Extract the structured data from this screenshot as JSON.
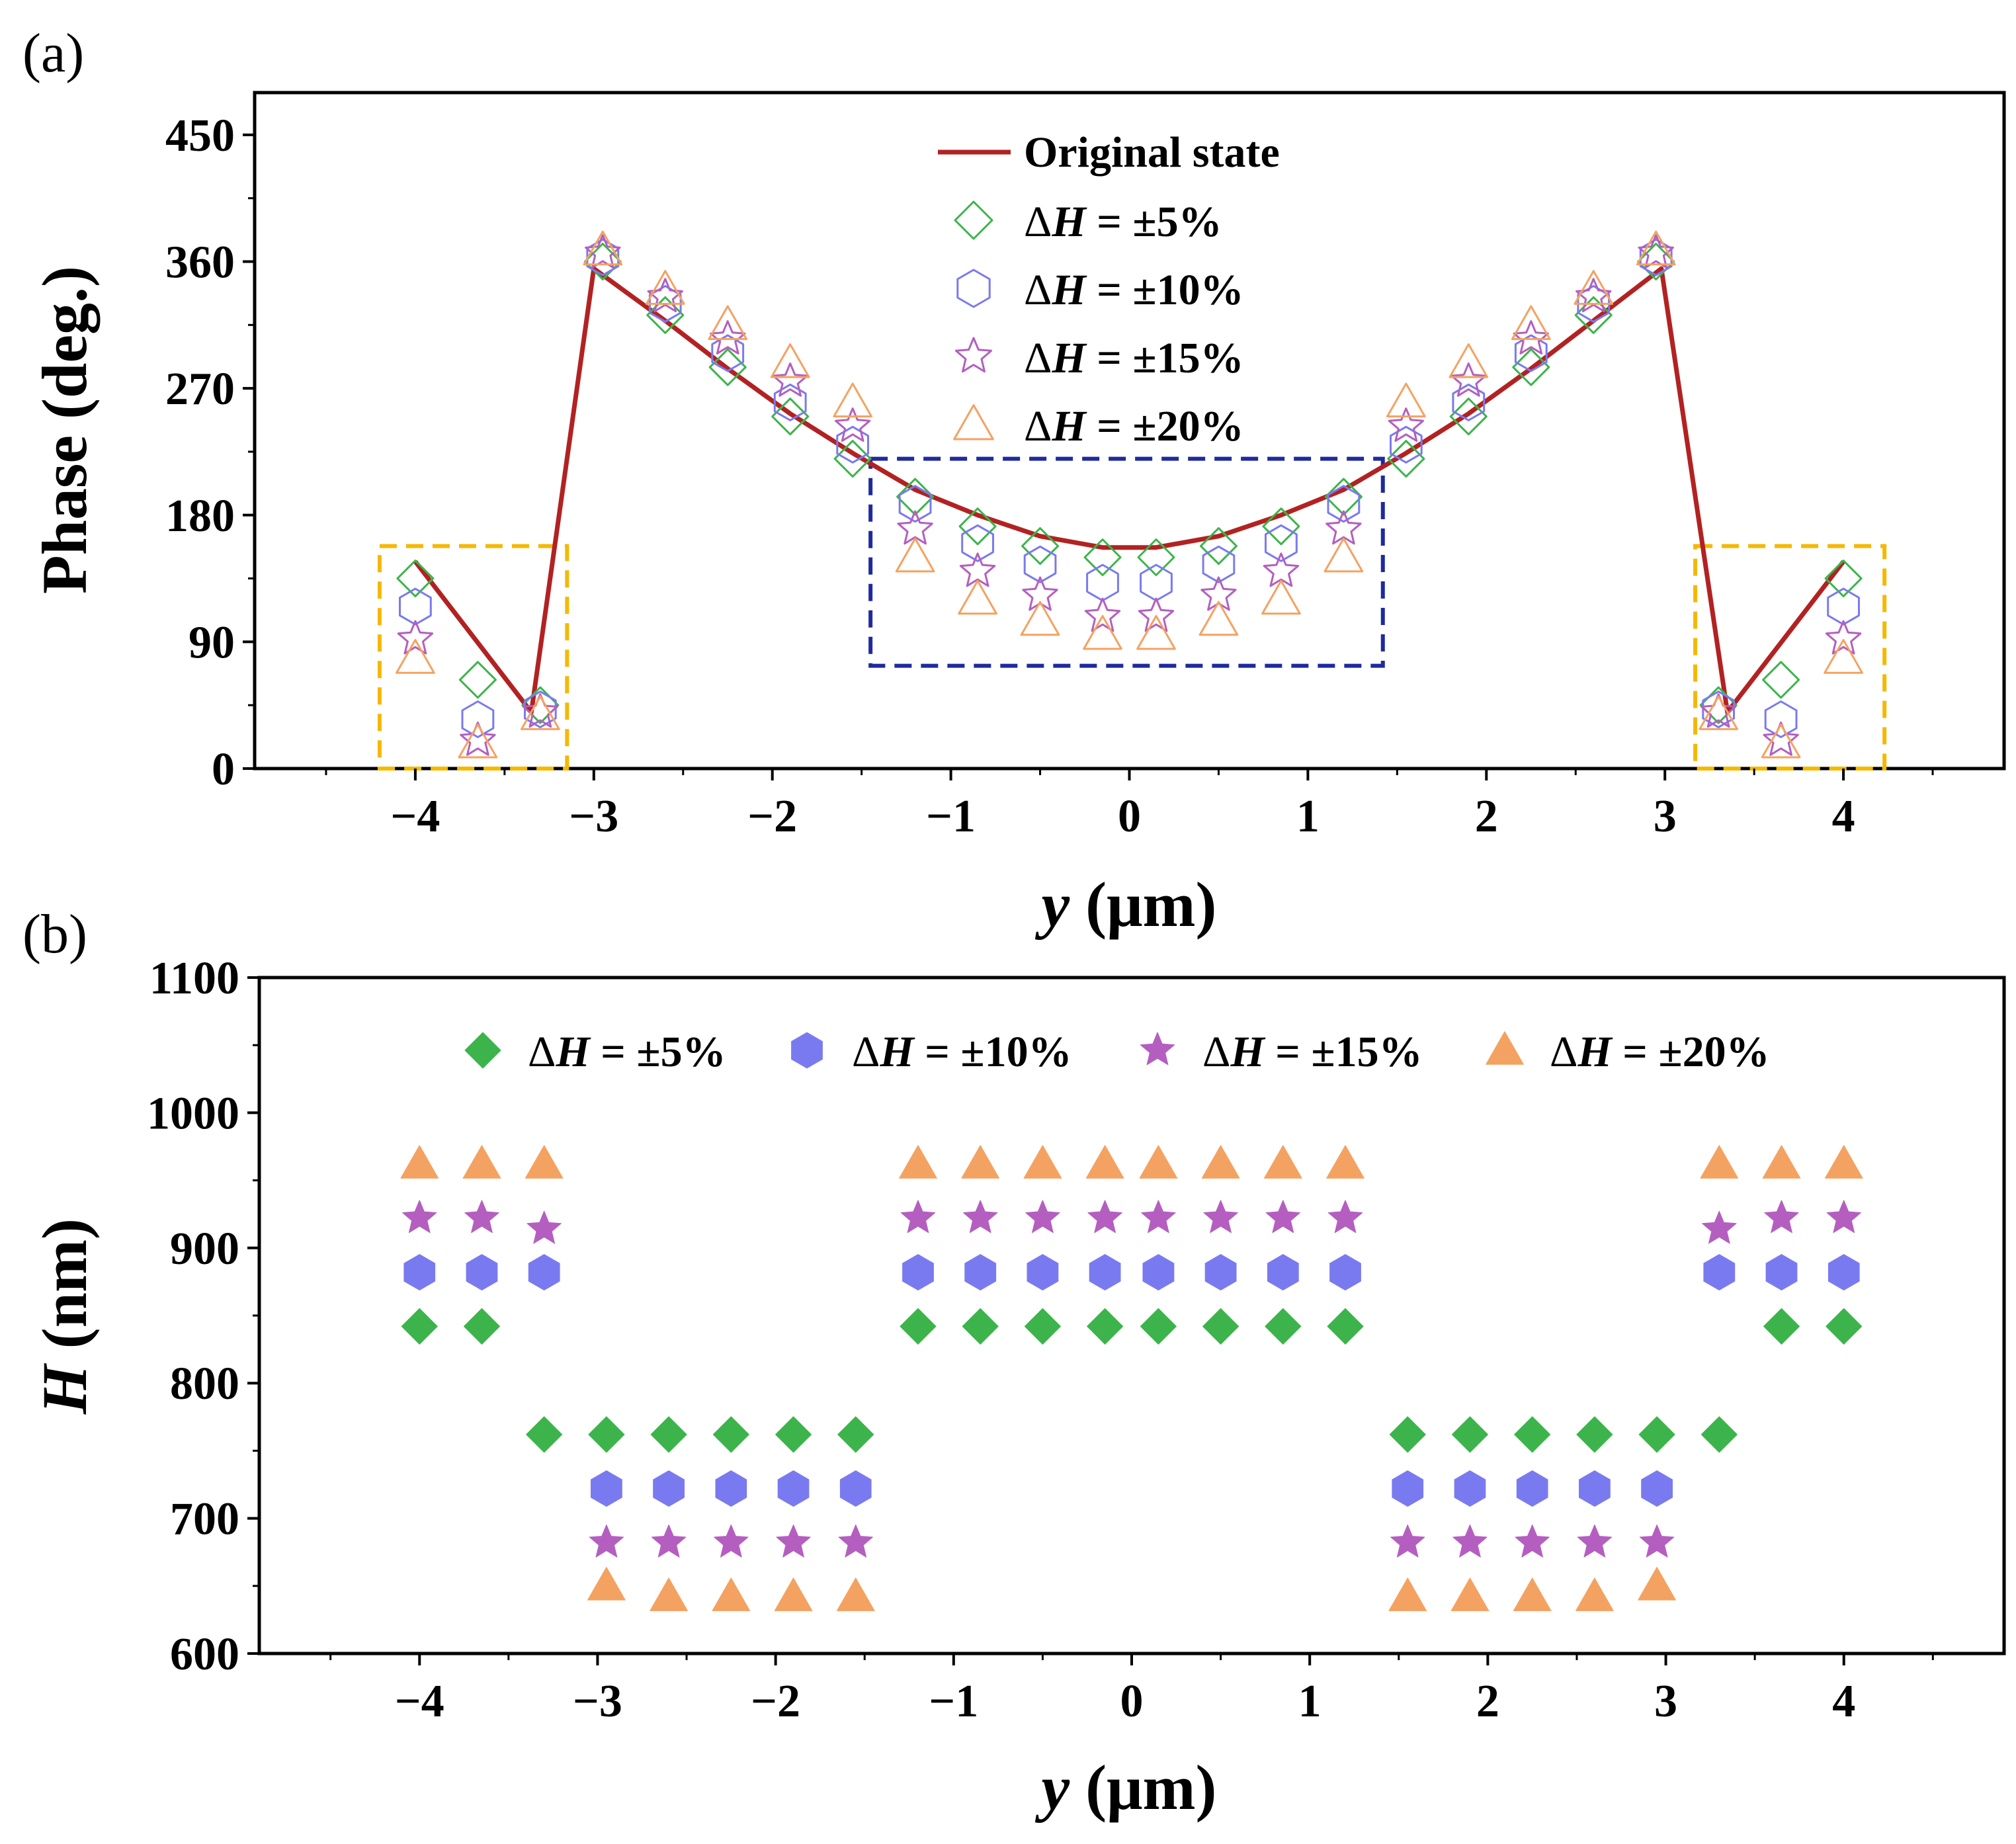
{
  "colors": {
    "line": "#b22222",
    "s5": "#3cb44b",
    "s10": "#7a7af0",
    "s15": "#b45fc0",
    "s20": "#f4a261",
    "box_center": "#1f2a9e",
    "box_side": "#f5b800"
  },
  "chart_data": [
    {
      "type": "scatter",
      "panel_label": "(a)",
      "xlabel_italic": "y",
      "xlabel_rest": " (μm)",
      "ylabel": "Phase (deg.)",
      "xlim": [
        -4.9,
        4.9
      ],
      "ylim": [
        0,
        480
      ],
      "xticks": [
        -4,
        -3,
        -2,
        -1,
        0,
        1,
        2,
        3,
        4
      ],
      "xtick_labels": [
        "−4",
        "−3",
        "−2",
        "−1",
        "0",
        "1",
        "2",
        "3",
        "4"
      ],
      "yticks": [
        0,
        90,
        180,
        270,
        360,
        450
      ],
      "ytick_labels": [
        "0",
        "90",
        "180",
        "270",
        "360",
        "450"
      ],
      "x": [
        -4.0,
        -3.65,
        -3.3,
        -2.95,
        -2.6,
        -2.25,
        -1.9,
        -1.55,
        -1.2,
        -0.85,
        -0.5,
        -0.15,
        0.15,
        0.5,
        0.85,
        1.2,
        1.55,
        1.9,
        2.25,
        2.6,
        2.95,
        3.3,
        3.65,
        4.0
      ],
      "line": {
        "name": "Original state",
        "x": [
          -4.0,
          -3.35,
          -3.0,
          -2.6,
          -2.25,
          -1.9,
          -1.55,
          -1.2,
          -0.85,
          -0.5,
          -0.15,
          0.15,
          0.5,
          0.85,
          1.2,
          1.55,
          1.9,
          2.25,
          2.6,
          2.98,
          3.35,
          4.0
        ],
        "y": [
          147,
          40,
          355,
          318,
          284,
          252,
          224,
          198,
          180,
          165,
          157,
          157,
          165,
          180,
          198,
          224,
          252,
          284,
          318,
          355,
          40,
          147
        ]
      },
      "series": [
        {
          "name_delta": "Δ",
          "name_var": "H",
          "name_rest": " = ±5%",
          "marker": "diamond",
          "filled": false,
          "color_key": "s5",
          "y": [
            135,
            63,
            45,
            360,
            322,
            285,
            250,
            220,
            193,
            172,
            158,
            150,
            150,
            158,
            172,
            193,
            220,
            250,
            285,
            322,
            360,
            45,
            63,
            135
          ]
        },
        {
          "name_delta": "Δ",
          "name_var": "H",
          "name_rest": " = ±10%",
          "marker": "hexagon",
          "filled": false,
          "color_key": "s10",
          "y": [
            115,
            35,
            42,
            363,
            330,
            295,
            260,
            230,
            188,
            160,
            145,
            132,
            132,
            145,
            160,
            188,
            230,
            260,
            295,
            330,
            363,
            42,
            35,
            115
          ]
        },
        {
          "name_delta": "Δ",
          "name_var": "H",
          "name_rest": " = ±15%",
          "marker": "star",
          "filled": false,
          "color_key": "s15",
          "y": [
            92,
            20,
            40,
            366,
            335,
            305,
            275,
            243,
            170,
            140,
            123,
            108,
            108,
            123,
            140,
            170,
            243,
            275,
            305,
            335,
            366,
            40,
            20,
            92
          ]
        },
        {
          "name_delta": "Δ",
          "name_var": "H",
          "name_rest": " = ±20%",
          "marker": "triangle",
          "filled": false,
          "color_key": "s20",
          "y": [
            78,
            18,
            38,
            368,
            340,
            315,
            288,
            260,
            150,
            120,
            105,
            95,
            95,
            105,
            120,
            150,
            260,
            288,
            315,
            340,
            368,
            38,
            18,
            78
          ]
        }
      ],
      "boxes": [
        {
          "x0": -4.2,
          "x1": -3.15,
          "y0": 0,
          "y1": 158,
          "color_key": "box_side"
        },
        {
          "x0": -1.45,
          "x1": 1.42,
          "y0": 73,
          "y1": 220,
          "color_key": "box_center"
        },
        {
          "x0": 3.17,
          "x1": 4.23,
          "y0": 0,
          "y1": 158,
          "color_key": "box_side"
        }
      ],
      "legend": "top-center"
    },
    {
      "type": "scatter",
      "panel_label": "(b)",
      "xlabel_italic": "y",
      "xlabel_rest": " (μm)",
      "ylabel_italic": "H",
      "ylabel_rest": " (nm)",
      "xlim": [
        -4.9,
        4.9
      ],
      "ylim": [
        600,
        1100
      ],
      "xticks": [
        -4,
        -3,
        -2,
        -1,
        0,
        1,
        2,
        3,
        4
      ],
      "xtick_labels": [
        "−4",
        "−3",
        "−2",
        "−1",
        "0",
        "1",
        "2",
        "3",
        "4"
      ],
      "yticks": [
        600,
        700,
        800,
        900,
        1000,
        1100
      ],
      "ytick_labels": [
        "600",
        "700",
        "800",
        "900",
        "1000",
        "1100"
      ],
      "x": [
        -4.0,
        -3.65,
        -3.3,
        -2.95,
        -2.6,
        -2.25,
        -1.9,
        -1.55,
        -1.2,
        -0.85,
        -0.5,
        -0.15,
        0.15,
        0.5,
        0.85,
        1.2,
        1.55,
        1.9,
        2.25,
        2.6,
        2.95,
        3.3,
        3.65,
        4.0
      ],
      "series": [
        {
          "name_delta": "Δ",
          "name_var": "H",
          "name_rest": " = ±5%",
          "marker": "diamond",
          "filled": true,
          "color_key": "s5",
          "y": [
            842,
            842,
            null,
            762,
            762,
            762,
            762,
            762,
            842,
            842,
            842,
            842,
            842,
            842,
            842,
            842,
            762,
            762,
            762,
            762,
            762,
            762,
            842,
            842
          ],
          "y_extra": [
            {
              "x": -3.3,
              "y": 762
            }
          ]
        },
        {
          "name_delta": "Δ",
          "name_var": "H",
          "name_rest": " = ±10%",
          "marker": "hexagon",
          "filled": true,
          "color_key": "s10",
          "y": [
            882,
            882,
            882,
            722,
            722,
            722,
            722,
            722,
            882,
            882,
            882,
            882,
            882,
            882,
            882,
            882,
            722,
            722,
            722,
            722,
            722,
            882,
            882,
            882
          ]
        },
        {
          "name_delta": "Δ",
          "name_var": "H",
          "name_rest": " = ±15%",
          "marker": "star",
          "filled": true,
          "color_key": "s15",
          "y": [
            922,
            922,
            914,
            682,
            682,
            682,
            682,
            682,
            922,
            922,
            922,
            922,
            922,
            922,
            922,
            922,
            682,
            682,
            682,
            682,
            682,
            914,
            922,
            922
          ]
        },
        {
          "name_delta": "Δ",
          "name_var": "H",
          "name_rest": " = ±20%",
          "marker": "triangle",
          "filled": true,
          "color_key": "s20",
          "y": [
            962,
            962,
            962,
            650,
            642,
            642,
            642,
            642,
            962,
            962,
            962,
            962,
            962,
            962,
            962,
            962,
            642,
            642,
            642,
            642,
            650,
            962,
            962,
            962
          ]
        }
      ],
      "legend": "top-center"
    }
  ]
}
